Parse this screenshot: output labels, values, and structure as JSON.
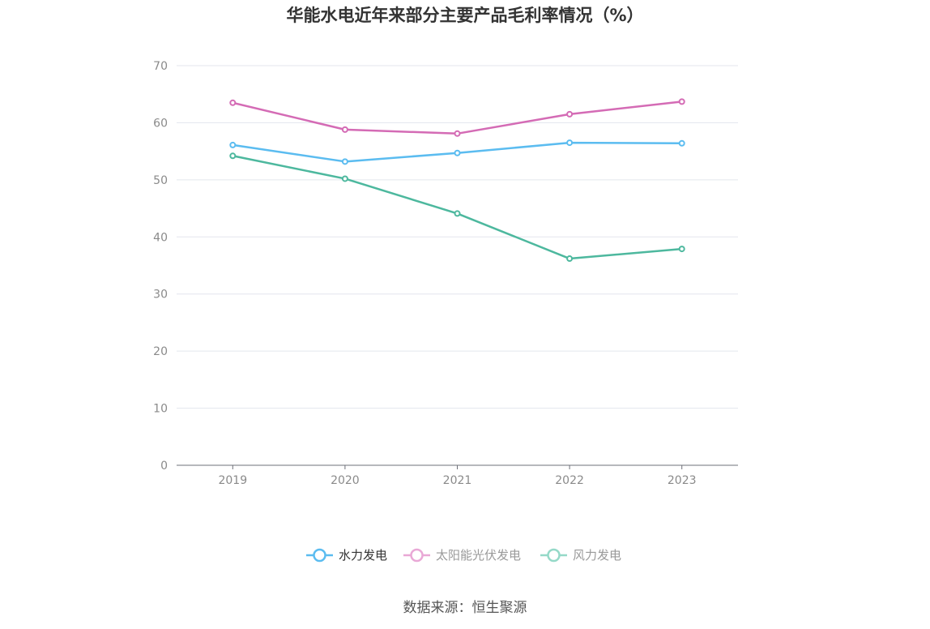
{
  "chart_data": {
    "type": "line",
    "title": "华能水电近年来部分主要产品毛利率情况（%）",
    "categories": [
      "2019",
      "2020",
      "2021",
      "2022",
      "2023"
    ],
    "ylim": [
      0,
      70
    ],
    "yticks": [
      0,
      10,
      20,
      30,
      40,
      50,
      60,
      70
    ],
    "grid": true,
    "legend_position": "bottom",
    "series": [
      {
        "name": "水力发电",
        "color": "#5bbcf0",
        "values": [
          56.1,
          53.2,
          54.7,
          56.5,
          56.4
        ]
      },
      {
        "name": "太阳能光伏发电",
        "color": "#d46bb5",
        "legend_color": "#e9a8d6",
        "values": [
          63.5,
          58.8,
          58.1,
          61.5,
          63.7
        ]
      },
      {
        "name": "风力发电",
        "color": "#4db89e",
        "legend_color": "#95d9c8",
        "values": [
          54.2,
          50.2,
          44.1,
          36.2,
          37.9
        ]
      }
    ]
  },
  "source": "数据来源：恒生聚源"
}
